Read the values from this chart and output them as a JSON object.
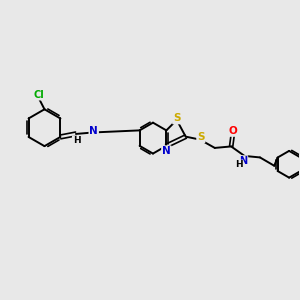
{
  "background_color": "#e8e8e8",
  "atom_colors": {
    "C": "#000000",
    "N": "#0000cd",
    "O": "#ff0000",
    "S": "#ccaa00",
    "Cl": "#00aa00",
    "H": "#000000",
    "NH": "#0000cd"
  },
  "bond_color": "#000000",
  "figsize": [
    3.0,
    3.0
  ],
  "dpi": 100,
  "xlim": [
    0,
    10
  ],
  "ylim": [
    0,
    10
  ]
}
